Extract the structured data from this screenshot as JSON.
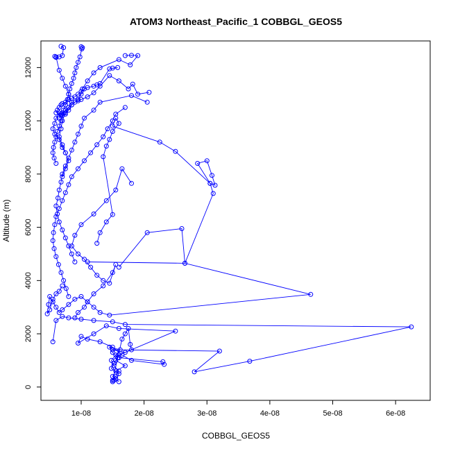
{
  "chart_data": {
    "type": "line",
    "title": "ATOM3 Northeast_Pacific_1 COBBGL_GEOS5",
    "xlabel": "COBBGL_GEOS5",
    "ylabel": "Altitude (m)",
    "xlim": [
      3.6e-09,
      6.55e-08
    ],
    "ylim": [
      -500,
      13000
    ],
    "x_ticks": [
      1e-08,
      2e-08,
      3e-08,
      4e-08,
      5e-08,
      6e-08
    ],
    "x_tick_labels": [
      "1e-08",
      "2e-08",
      "3e-08",
      "4e-08",
      "5e-08",
      "6e-08"
    ],
    "y_ticks": [
      0,
      2000,
      4000,
      6000,
      8000,
      10000,
      12000
    ],
    "y_tick_labels": [
      "0",
      "2000",
      "4000",
      "6000",
      "8000",
      "10000",
      "12000"
    ],
    "grid": false,
    "marker": "open-circle",
    "color": "#0000ff",
    "series": [
      {
        "x": [
          1.5e-08,
          1.55e-08,
          1.6e-08,
          1.48e-08,
          1.52e-08,
          1.58e-08,
          1.5e-08,
          1.45e-08,
          1.62e-08,
          1.55e-08,
          1.48e-08,
          1.52e-08,
          1.6e-08,
          1.55e-08,
          1.5e-08,
          1.65e-08,
          1.7e-08,
          1.75e-08,
          1.78e-08,
          1.8e-08,
          1.6e-08,
          1.55e-08,
          1.7e-08,
          1.55e-08,
          1.5e-08,
          1.6e-08,
          1.55e-08,
          1.52e-08
        ],
        "y": [
          200,
          300,
          500,
          700,
          900,
          1100,
          1300,
          1500,
          1400,
          1200,
          1000,
          800,
          600,
          400,
          250,
          1800,
          2000,
          2200,
          1600,
          1400,
          1200,
          1000,
          800,
          600,
          400,
          200,
          300,
          250
        ]
      },
      {
        "x": [
          1.6e-08,
          2.3e-08,
          2.32e-08,
          1.8e-08,
          1.65e-08,
          1.5e-08,
          1.3e-08,
          1.1e-08,
          1e-08,
          9.5e-09,
          1.2e-08,
          1.4e-08,
          1.6e-08,
          2.5e-08,
          1.7e-08,
          1.5e-08,
          3.2e-08,
          2.8e-08,
          3.68e-08,
          6.25e-08,
          1.7e-08,
          1.5e-08,
          1.2e-08,
          1e-08,
          8e-09,
          7e-09,
          6e-09,
          5.5e-09
        ],
        "y": [
          1100,
          950,
          850,
          1000,
          1200,
          1500,
          1700,
          1800,
          1900,
          1650,
          2000,
          2300,
          2200,
          2100,
          1300,
          1400,
          1350,
          570,
          970,
          2260,
          2350,
          2450,
          2500,
          2550,
          2600,
          2650,
          2500,
          1700
        ]
      },
      {
        "x": [
          1.1e-08,
          2.65e-08,
          4.65e-08,
          1.45e-08,
          1.3e-08,
          1.2e-08,
          1.1e-08,
          1e-08,
          9e-09,
          8e-09,
          7e-09,
          6.5e-09,
          6e-09,
          5.5e-09,
          5e-09,
          4.8e-09,
          4.6e-09,
          5e-09,
          5.5e-09,
          6e-09,
          6.5e-09,
          7e-09
        ],
        "y": [
          4700,
          4650,
          3480,
          2700,
          2800,
          3000,
          3200,
          3400,
          3300,
          3100,
          2900,
          2800,
          3000,
          3200,
          3400,
          3100,
          2750,
          2900,
          3300,
          3500,
          3600,
          3800
        ]
      },
      {
        "x": [
          1.6e-08,
          2.05e-08,
          2.6e-08,
          2.65e-08,
          3.1e-08,
          3.05e-08,
          3.13e-08,
          3.08e-08,
          3e-08,
          2.85e-08,
          3.05e-08,
          2.5e-08,
          2.25e-08,
          1.5e-08,
          1.55e-08,
          1.6e-08,
          1.5e-08,
          1.45e-08,
          1.4e-08,
          1.35e-08,
          1.5e-08,
          1.4e-08,
          1.3e-08,
          1.25e-08
        ],
        "y": [
          4500,
          5800,
          5950,
          4650,
          7270,
          7650,
          7580,
          7950,
          8500,
          8400,
          7650,
          8850,
          9200,
          9800,
          10100,
          9900,
          9600,
          9300,
          9050,
          8650,
          6480,
          6200,
          5800,
          5400
        ]
      },
      {
        "x": [
          1.8e-08,
          1.65e-08,
          1.55e-08,
          1.4e-08,
          1.2e-08,
          1e-08,
          9e-09,
          8.5e-09,
          9.5e-09,
          1.05e-08,
          1.15e-08,
          1.25e-08,
          1.35e-08,
          1.45e-08,
          1.55e-08,
          1.5e-08,
          1.35e-08,
          1.2e-08,
          1.1e-08,
          1.05e-08,
          9.5e-09,
          9e-09
        ],
        "y": [
          7650,
          8200,
          7400,
          7000,
          6500,
          6100,
          5700,
          5300,
          5000,
          4800,
          4500,
          4200,
          4000,
          3900,
          4600,
          4300,
          3800,
          3500,
          3200,
          3000,
          2800,
          2600
        ]
      },
      {
        "x": [
          1.7e-08,
          1.55e-08,
          1.5e-08,
          1.42e-08,
          1.35e-08,
          1.25e-08,
          1.15e-08,
          1.05e-08,
          9.5e-09,
          8.5e-09,
          8e-09,
          7.5e-09,
          7e-09,
          6.5e-09,
          6e-09,
          5.8e-09,
          5.6e-09,
          5.5e-09,
          5.7e-09,
          6e-09,
          6.4e-09,
          6.8e-09,
          7.2e-09,
          7.6e-09,
          8e-09
        ],
        "y": [
          10500,
          10250,
          10000,
          9700,
          9400,
          9100,
          8800,
          8500,
          8200,
          7900,
          7600,
          7300,
          7000,
          6700,
          6400,
          6100,
          5800,
          5500,
          5200,
          4900,
          4600,
          4300,
          4000,
          3700,
          3400
        ]
      },
      {
        "x": [
          2.05e-08,
          1.8e-08,
          1.3e-08,
          1.2e-08,
          1.05e-08,
          1e-08,
          9.5e-09,
          9e-09,
          8.5e-09,
          8e-09,
          7.5e-09,
          7e-09,
          6.8e-09,
          6.5e-09,
          6.3e-09,
          6e-09,
          6.2e-09,
          6.5e-09,
          7e-09,
          7.5e-09,
          8e-09,
          8.5e-09,
          9e-09
        ],
        "y": [
          10700,
          10950,
          10700,
          10400,
          10100,
          9800,
          9500,
          9200,
          8900,
          8600,
          8300,
          8000,
          7700,
          7400,
          7100,
          6800,
          6500,
          6200,
          5900,
          5600,
          5300,
          5000,
          4700
        ]
      },
      {
        "x": [
          2.08e-08,
          1.9e-08,
          1.82e-08,
          1.75e-08,
          1.6e-08,
          1.45e-08,
          1.3e-08,
          1.2e-08,
          1.1e-08,
          1e-08,
          9.5e-09,
          9e-09,
          8.5e-09,
          8e-09,
          7.5e-09,
          7e-09,
          6.8e-09,
          6.5e-09
        ],
        "y": [
          11070,
          11000,
          11380,
          11200,
          11500,
          11700,
          11300,
          11050,
          10900,
          10800,
          10750,
          10700,
          10600,
          10500,
          10400,
          10300,
          10200,
          10100
        ]
      },
      {
        "x": [
          1.5e-08,
          1.58e-08,
          1.45e-08,
          1.3e-08,
          1.25e-08,
          1.2e-08,
          1.1e-08,
          1.05e-08,
          1e-08,
          9.5e-09,
          9e-09,
          8.5e-09,
          8e-09,
          7.5e-09,
          7e-09,
          6.8e-09,
          6.5e-09,
          6.2e-09,
          6e-09
        ],
        "y": [
          11980,
          12000,
          11950,
          11400,
          11350,
          11300,
          11250,
          11200,
          11100,
          11000,
          10900,
          10850,
          10800,
          10700,
          10650,
          10600,
          10500,
          10400,
          10300
        ]
      },
      {
        "x": [
          1.7e-08,
          1.8e-08,
          1.9e-08,
          1.78e-08,
          1.6e-08,
          1.3e-08,
          1.2e-08,
          1.1e-08,
          1.02e-08,
          1e-08,
          9.5e-09,
          8.5e-09,
          8e-09,
          7.5e-09,
          7e-09,
          6.8e-09,
          6.5e-09,
          6e-09,
          5.8e-09,
          5.5e-09,
          5.8e-09,
          6.5e-09,
          7e-09,
          7.5e-09
        ],
        "y": [
          12450,
          12460,
          12450,
          12100,
          12300,
          12000,
          11800,
          11500,
          11200,
          11000,
          10800,
          10600,
          10400,
          10250,
          10200,
          10250,
          10300,
          10100,
          9900,
          9700,
          9500,
          9300,
          9000,
          8800
        ]
      },
      {
        "x": [
          6.8e-09,
          7.2e-09,
          7e-09,
          6.5e-09,
          6e-09,
          5.8e-09,
          6e-09,
          6.5e-09,
          7e-09,
          7.5e-09,
          8e-09,
          8.5e-09,
          8e-09,
          7.5e-09,
          7e-09,
          6.8e-09,
          6.5e-09,
          7e-09,
          7.5e-09,
          8e-09,
          7.5e-09,
          7e-09
        ],
        "y": [
          12800,
          12750,
          12450,
          12400,
          12380,
          12420,
          12400,
          11900,
          11600,
          11300,
          11000,
          10700,
          10500,
          10300,
          10000,
          9700,
          9400,
          9100,
          8800,
          8500,
          8200,
          7900
        ]
      },
      {
        "x": [
          1e-08,
          1.02e-08,
          1.01e-08,
          9.8e-09,
          9.5e-09,
          9.2e-09,
          9e-09,
          8.8e-09,
          8.5e-09,
          8.2e-09,
          8e-09,
          7.8e-09,
          7.5e-09,
          7.2e-09,
          7e-09,
          6.8e-09,
          6.5e-09,
          6.2e-09,
          6e-09,
          5.8e-09,
          5.6e-09,
          5.5e-09,
          5.7e-09,
          6e-09
        ],
        "y": [
          12780,
          12750,
          12700,
          12400,
          12200,
          12000,
          11800,
          11600,
          11400,
          11200,
          11000,
          10800,
          10600,
          10400,
          10200,
          10000,
          9800,
          9600,
          9400,
          9200,
          9000,
          8800,
          8600,
          8400
        ]
      }
    ]
  }
}
